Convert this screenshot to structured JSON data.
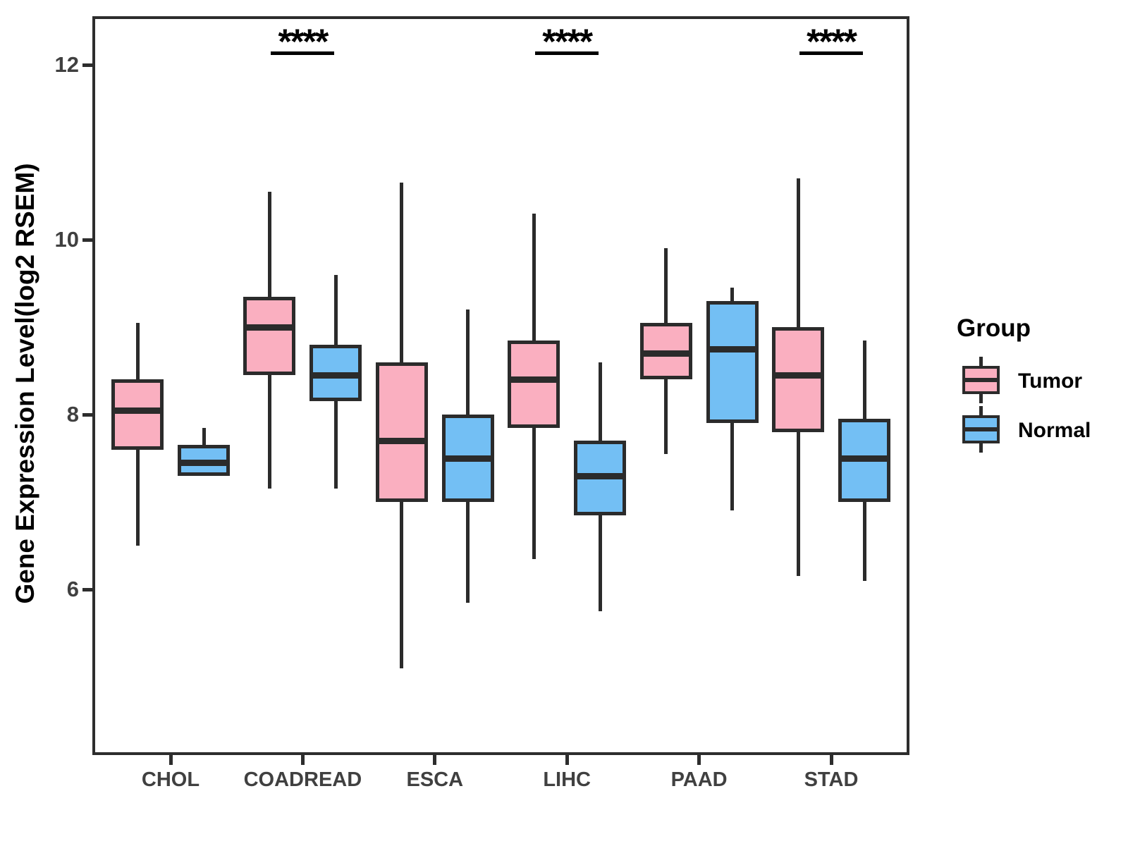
{
  "figure": {
    "kind": "grouped boxplot",
    "background": "#ffffff"
  },
  "axes": {
    "y_label": "Gene Expression Level(log2 RSEM)",
    "y_ticks": [
      12,
      10,
      8,
      6
    ],
    "x_categories": [
      "CHOL",
      "COADREAD",
      "ESCA",
      "LIHC",
      "PAAD",
      "STAD"
    ]
  },
  "legend": {
    "title": "Group",
    "items": [
      {
        "label": "Tumor",
        "color": "#FAAFC0"
      },
      {
        "label": "Normal",
        "color": "#73BFF4"
      }
    ]
  },
  "colors": {
    "tumor_fill": "#FAAFC0",
    "normal_fill": "#73BFF4",
    "line": "#2b2b2b",
    "panel_border": "#2d2d2d",
    "tick_text": "#404040",
    "title_text": "#000000"
  },
  "chart_data": {
    "type": "boxplot",
    "categories": [
      "CHOL",
      "COADREAD",
      "ESCA",
      "LIHC",
      "PAAD",
      "STAD"
    ],
    "ylabel": "Gene Expression Level(log2 RSEM)",
    "ylim": [
      4.1,
      12.55
    ],
    "y_ticks": [
      6,
      8,
      10,
      12
    ],
    "grid": false,
    "legend_position": "right",
    "series": [
      {
        "name": "Tumor",
        "color": "#FAAFC0",
        "boxes": [
          {
            "category": "CHOL",
            "low": 6.5,
            "q1": 7.6,
            "median": 8.05,
            "q3": 8.4,
            "high": 9.05
          },
          {
            "category": "COADREAD",
            "low": 7.15,
            "q1": 8.45,
            "median": 9.0,
            "q3": 9.35,
            "high": 10.55
          },
          {
            "category": "ESCA",
            "low": 5.1,
            "q1": 7.0,
            "median": 7.7,
            "q3": 8.6,
            "high": 10.65
          },
          {
            "category": "LIHC",
            "low": 6.35,
            "q1": 7.85,
            "median": 8.4,
            "q3": 8.85,
            "high": 10.3
          },
          {
            "category": "PAAD",
            "low": 7.55,
            "q1": 8.4,
            "median": 8.7,
            "q3": 9.05,
            "high": 9.9
          },
          {
            "category": "STAD",
            "low": 6.15,
            "q1": 7.8,
            "median": 8.45,
            "q3": 9.0,
            "high": 10.7
          }
        ]
      },
      {
        "name": "Normal",
        "color": "#73BFF4",
        "boxes": [
          {
            "category": "CHOL",
            "low": 7.3,
            "q1": 7.3,
            "median": 7.45,
            "q3": 7.65,
            "high": 7.85
          },
          {
            "category": "COADREAD",
            "low": 7.15,
            "q1": 8.15,
            "median": 8.45,
            "q3": 8.8,
            "high": 9.6
          },
          {
            "category": "ESCA",
            "low": 5.85,
            "q1": 7.0,
            "median": 7.5,
            "q3": 8.0,
            "high": 9.2
          },
          {
            "category": "LIHC",
            "low": 5.75,
            "q1": 6.85,
            "median": 7.3,
            "q3": 7.7,
            "high": 8.6
          },
          {
            "category": "PAAD",
            "low": 6.9,
            "q1": 7.9,
            "median": 8.75,
            "q3": 9.3,
            "high": 9.45
          },
          {
            "category": "STAD",
            "low": 6.1,
            "q1": 7.0,
            "median": 7.5,
            "q3": 7.95,
            "high": 8.85
          }
        ]
      }
    ],
    "significance": [
      {
        "category": "COADREAD",
        "label": "****"
      },
      {
        "category": "LIHC",
        "label": "****"
      },
      {
        "category": "STAD",
        "label": "****"
      }
    ]
  }
}
